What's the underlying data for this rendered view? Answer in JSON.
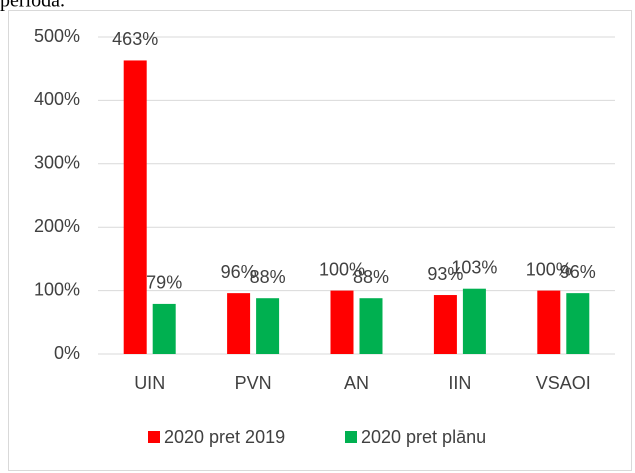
{
  "caption": "perioda.",
  "chart_data": {
    "type": "bar",
    "categories": [
      "UIN",
      "PVN",
      "AN",
      "IIN",
      "VSAOI"
    ],
    "series": [
      {
        "name": "2020 pret 2019",
        "color": "#ff0000",
        "values": [
          463,
          96,
          100,
          93,
          100
        ],
        "value_labels": [
          "463%",
          "96%",
          "100%",
          "93%",
          "100%"
        ]
      },
      {
        "name": "2020 pret plānu",
        "color": "#00b050",
        "values": [
          79,
          88,
          88,
          103,
          96
        ],
        "value_labels": [
          "79%",
          "88%",
          "88%",
          "103%",
          "96%"
        ]
      }
    ],
    "ylim": [
      0,
      500
    ],
    "yticks": [
      {
        "value": 0,
        "label": "0%"
      },
      {
        "value": 100,
        "label": "100%"
      },
      {
        "value": 200,
        "label": "200%"
      },
      {
        "value": 300,
        "label": "300%"
      },
      {
        "value": 400,
        "label": "400%"
      },
      {
        "value": 500,
        "label": "500%"
      }
    ],
    "grid": true,
    "legend": "bottom"
  }
}
